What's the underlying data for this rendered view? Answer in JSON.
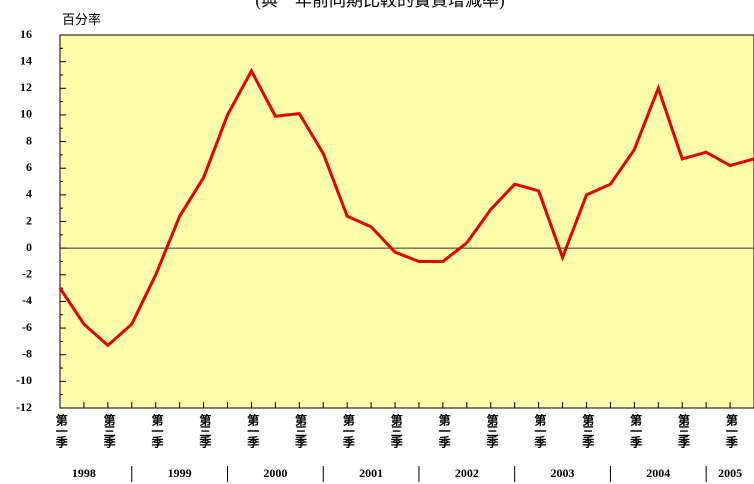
{
  "chart_data": {
    "type": "line",
    "title": "(與一年前同期比較的實質增減率)",
    "y_label": "百分率",
    "categories": [
      "第一季",
      null,
      "第三季",
      null,
      "第一季",
      null,
      "第三季",
      null,
      "第一季",
      null,
      "第三季",
      null,
      "第一季",
      null,
      "第三季",
      null,
      "第一季",
      null,
      "第三季",
      null,
      "第一季",
      null,
      "第三季",
      null,
      "第一季",
      null,
      "第三季",
      null,
      "第一季",
      null
    ],
    "year_groups": [
      "1998",
      "1999",
      "2000",
      "2001",
      "2002",
      "2003",
      "2004",
      "2005"
    ],
    "series": [
      {
        "name": "增減率",
        "color": "#e60000",
        "values": [
          -3.0,
          -5.7,
          -7.3,
          -5.7,
          -2.0,
          2.4,
          5.3,
          10.0,
          13.3,
          9.9,
          10.1,
          7.1,
          2.4,
          1.6,
          -0.3,
          -1.0,
          -1.0,
          0.4,
          2.9,
          4.8,
          4.3,
          -0.7,
          4.0,
          4.8,
          7.4,
          12.0,
          6.7,
          7.2,
          6.2,
          6.7
        ]
      }
    ],
    "ylim": [
      -12,
      16
    ],
    "yticks": [
      -12,
      -10,
      -8,
      -6,
      -4,
      -2,
      0,
      2,
      4,
      6,
      8,
      10,
      12,
      14,
      16
    ],
    "background": "#ffffaa"
  }
}
